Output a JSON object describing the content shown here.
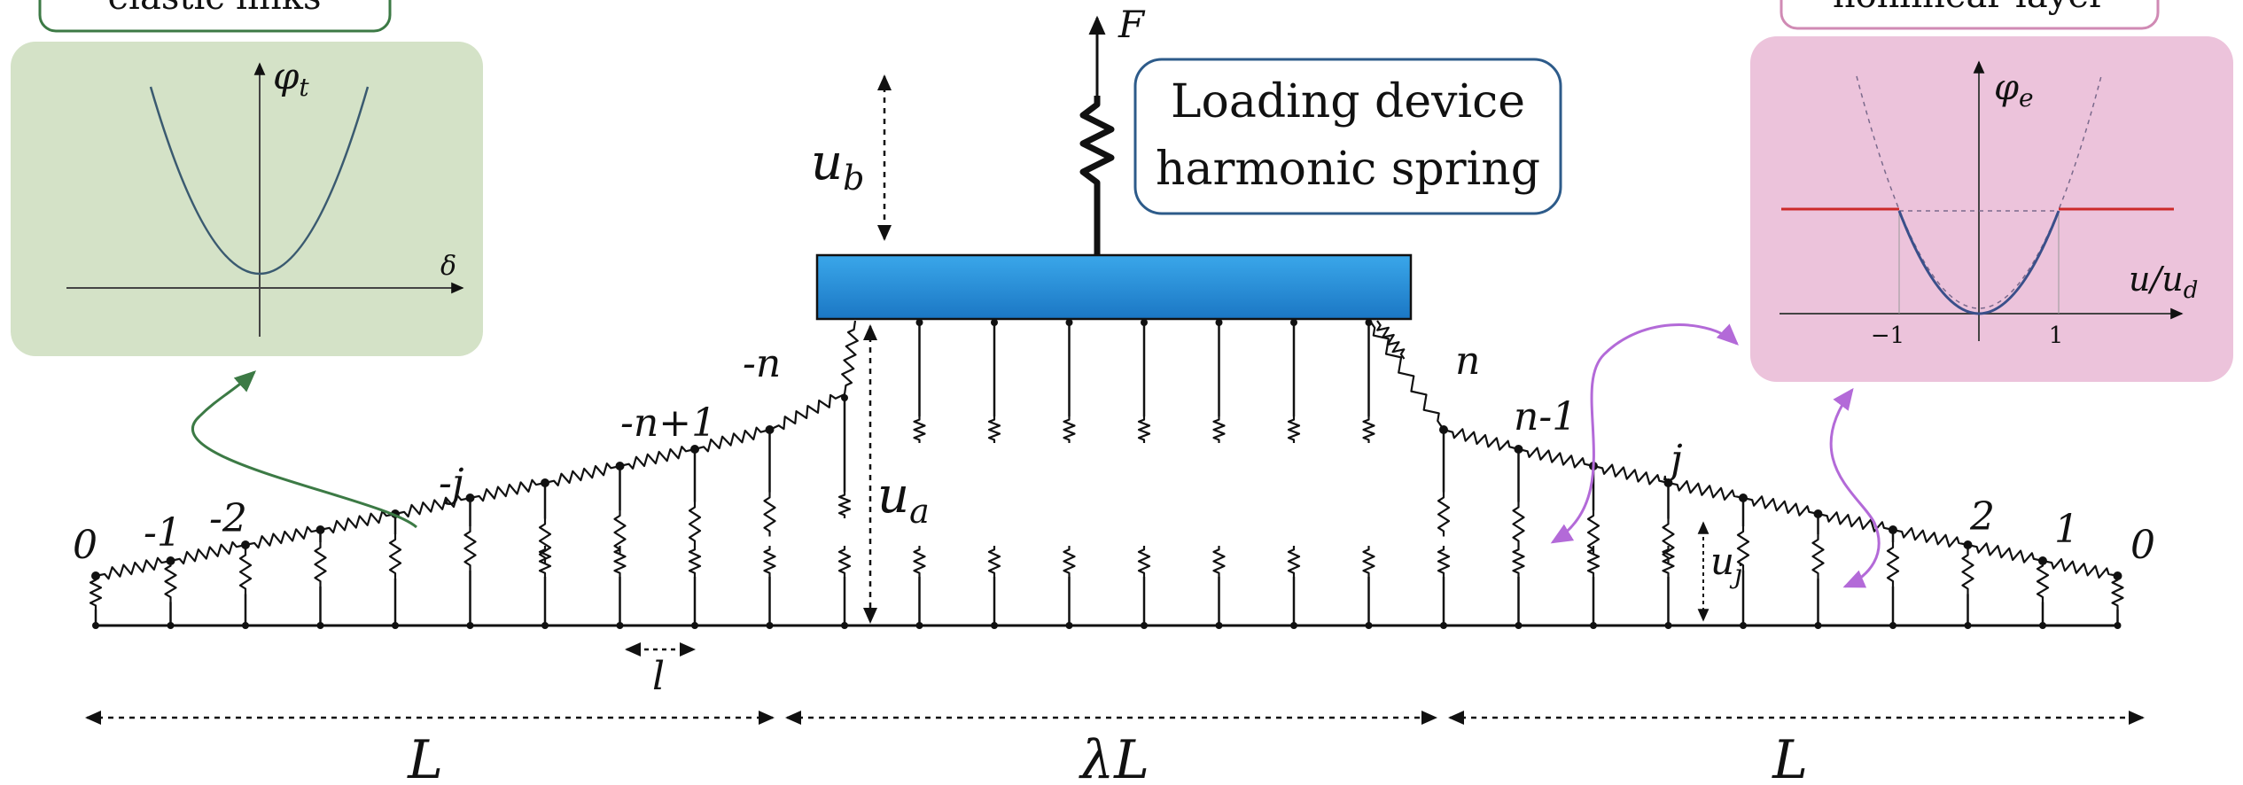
{
  "top_left_box": {
    "label": "elastic links"
  },
  "top_right_box": {
    "label": "nonlinear layer"
  },
  "loading_box": {
    "line1": "Loading device",
    "line2": "harmonic spring"
  },
  "left_inset": {
    "y_axis": "φ",
    "y_sub": "t",
    "x_axis": "δ"
  },
  "right_inset": {
    "y_axis": "φ",
    "y_sub": "e",
    "x_axis": "u/u",
    "x_sub": "d",
    "tick_neg": "−1",
    "tick_pos": "1"
  },
  "labels": {
    "force": "F",
    "u_b": "u",
    "u_b_sub": "b",
    "u_a": "u",
    "u_a_sub": "a",
    "u_j": "u",
    "u_j_sub": "j",
    "spacing": "l",
    "left_0": "0",
    "left_m1": "-1",
    "left_m2": "-2",
    "left_mj": "-j",
    "left_mn1": "-n+1",
    "left_mn": "-n",
    "right_n": "n",
    "right_n1": "n-1",
    "right_j": "j",
    "right_2": "2",
    "right_1": "1",
    "right_0": "0"
  },
  "bottom": {
    "left": "L",
    "middle": "λL",
    "right": "L"
  },
  "colors": {
    "green_box_bg": "#d4e2c7",
    "green_border": "#3c7a45",
    "pink_box_bg": "#ecc3db",
    "pink_border": "#d08ab4",
    "device": "#2a8fd6",
    "blue_border": "#2d5b8a",
    "purple": "#b36ad8",
    "red_line": "#cc2a2a",
    "curve": "#3a4f8a"
  }
}
